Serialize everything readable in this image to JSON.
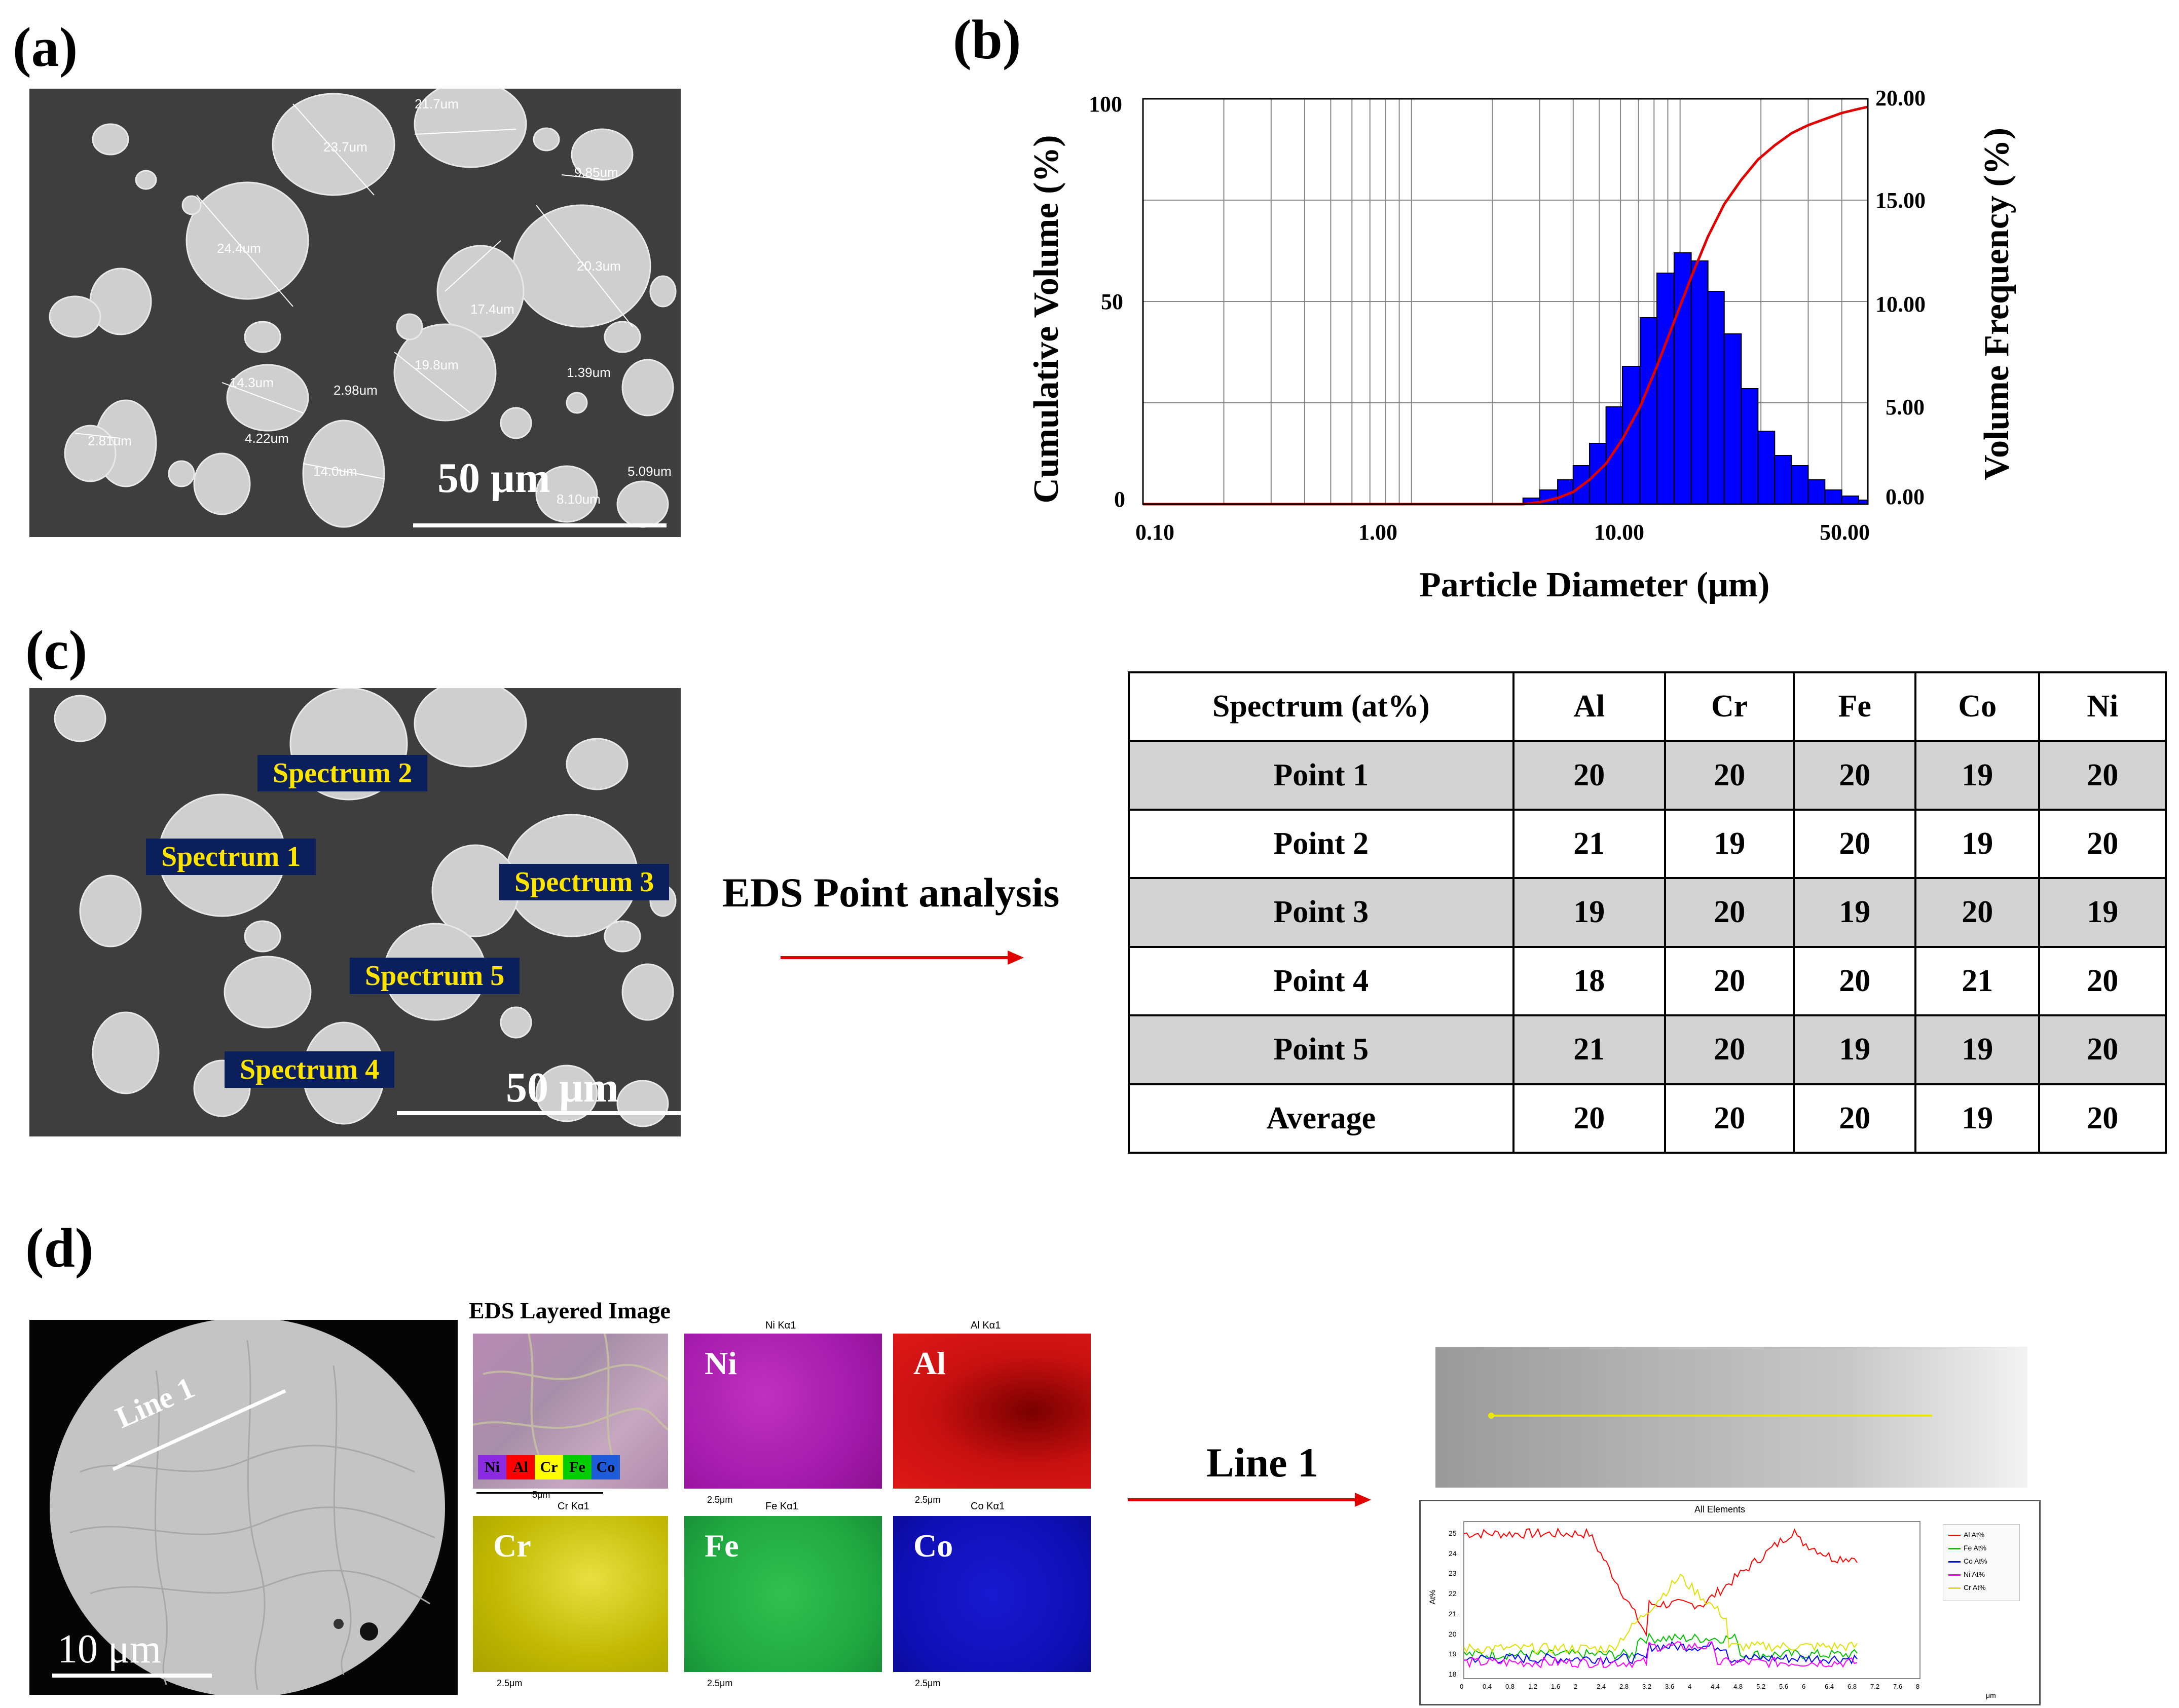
{
  "labels": {
    "a": "(a)",
    "b": "(b)",
    "c": "(c)",
    "d": "(d)"
  },
  "panel_a": {
    "scale": "50 μm",
    "measurements": [
      "21.7um",
      "23.7um",
      "24.4um",
      "9.85um",
      "20.3um",
      "17.4um",
      "19.8um",
      "1.39um",
      "14.3um",
      "2.98um",
      "2.81um",
      "4.22um",
      "14.0um",
      "5.09um",
      "8.10um"
    ]
  },
  "chart_data": {
    "type": "bar",
    "title": "",
    "xlabel": "Particle Diameter (μm)",
    "ylabel": "Cumulative Volume (%)",
    "y2label": "Volume Frequency (%)",
    "xscale": "log",
    "xlim": [
      0.1,
      50
    ],
    "ylim": [
      0,
      100
    ],
    "y2lim": [
      0,
      20
    ],
    "x_tick_labels": [
      "0.10",
      "1.00",
      "10.00",
      "50.00"
    ],
    "y_tick_labels": [
      "100",
      "50",
      "0"
    ],
    "y2_tick_labels": [
      "20.00",
      "15.00",
      "10.00",
      "5.00",
      "0.00"
    ],
    "series": [
      {
        "name": "Volume Frequency",
        "axis": "right",
        "color": "#0000ff",
        "bin_edges": [
          2.6,
          3.0,
          3.5,
          4.0,
          4.6,
          5.3,
          6.1,
          7.1,
          8.2,
          9.5,
          11.0,
          12.7,
          14.6,
          16.9,
          19.5,
          22.5,
          26.0,
          30.0,
          34.6,
          40.0,
          46.2,
          50.0
        ],
        "values": [
          0.3,
          0.7,
          1.2,
          1.9,
          3.0,
          4.8,
          6.8,
          9.2,
          11.4,
          12.4,
          12.0,
          10.5,
          8.4,
          5.7,
          3.6,
          2.4,
          1.9,
          1.2,
          0.7,
          0.4,
          0.2
        ]
      },
      {
        "name": "Cumulative Volume",
        "axis": "left",
        "color": "#e00000",
        "x": [
          0.1,
          2.6,
          3.0,
          3.5,
          4.0,
          4.6,
          5.3,
          6.1,
          7.1,
          8.2,
          9.5,
          11.0,
          12.7,
          14.6,
          16.9,
          19.5,
          22.5,
          26.0,
          30.0,
          34.6,
          40.0,
          46.2,
          50.0
        ],
        "values": [
          0,
          0,
          0.5,
          1.5,
          3,
          6,
          10,
          16,
          24,
          34,
          45,
          56,
          66,
          74,
          80,
          85,
          88.5,
          91.5,
          93.5,
          95,
          96.5,
          97.5,
          98
        ]
      }
    ]
  },
  "panel_c": {
    "scale": "50 μm",
    "spectra": [
      "Spectrum 2",
      "Spectrum 1",
      "Spectrum 3",
      "Spectrum 5",
      "Spectrum 4"
    ],
    "arrow_label": "EDS Point analysis"
  },
  "eds_table": {
    "headers": [
      "Spectrum (at%)",
      "Al",
      "Cr",
      "Fe",
      "Co",
      "Ni"
    ],
    "rows": [
      [
        "Point 1",
        "20",
        "20",
        "20",
        "19",
        "20"
      ],
      [
        "Point 2",
        "21",
        "19",
        "20",
        "19",
        "20"
      ],
      [
        "Point 3",
        "19",
        "20",
        "19",
        "20",
        "19"
      ],
      [
        "Point 4",
        "18",
        "20",
        "20",
        "21",
        "20"
      ],
      [
        "Point 5",
        "21",
        "20",
        "19",
        "19",
        "20"
      ],
      [
        "Average",
        "20",
        "20",
        "20",
        "19",
        "20"
      ]
    ]
  },
  "panel_d": {
    "particle_scale": "10 μm",
    "line_label": "Line 1",
    "layered_title": "EDS Layered Image",
    "legend": [
      {
        "el": "Ni",
        "color": "#8a2be2"
      },
      {
        "el": "Al",
        "color": "#ff0000"
      },
      {
        "el": "Cr",
        "color": "#ffff00"
      },
      {
        "el": "Fe",
        "color": "#00cc00"
      },
      {
        "el": "Co",
        "color": "#1e5bd8"
      }
    ],
    "maps": [
      {
        "el": "Ni",
        "title": "Ni Kα1",
        "color": "#b020b0",
        "scale": "2.5μm"
      },
      {
        "el": "Al",
        "title": "Al Kα1",
        "color": "#d01010",
        "scale": "2.5μm"
      },
      {
        "el": "Cr",
        "title": "Cr Kα1",
        "color": "#c8c000",
        "scale": "2.5μm"
      },
      {
        "el": "Fe",
        "title": "Fe Kα1",
        "color": "#20b040",
        "scale": "2.5μm"
      },
      {
        "el": "Co",
        "title": "Co Kα1",
        "color": "#1010c0",
        "scale": "2.5μm"
      }
    ],
    "layered_scale": "5μm",
    "arrow_label": "Line 1",
    "linescan": {
      "title": "All Elements",
      "ylabel": "At%",
      "xunit": "μm",
      "y_ticks": [
        "25",
        "24",
        "23",
        "22",
        "21",
        "20",
        "19",
        "18"
      ],
      "x_ticks": [
        "0",
        "0.4",
        "0.8",
        "1.2",
        "1.6",
        "2",
        "2.4",
        "2.8",
        "3.2",
        "3.6",
        "4",
        "4.4",
        "4.8",
        "5.2",
        "5.6",
        "6",
        "6.4",
        "6.8",
        "7.2",
        "7.6",
        "8"
      ],
      "legend": [
        {
          "name": "Al At%",
          "color": "#ff0000"
        },
        {
          "name": "Fe At%",
          "color": "#00c000"
        },
        {
          "name": "Co At%",
          "color": "#0000ff"
        },
        {
          "name": "Ni At%",
          "color": "#ff00ff"
        },
        {
          "name": "Cr At%",
          "color": "#e0e000"
        }
      ]
    }
  }
}
